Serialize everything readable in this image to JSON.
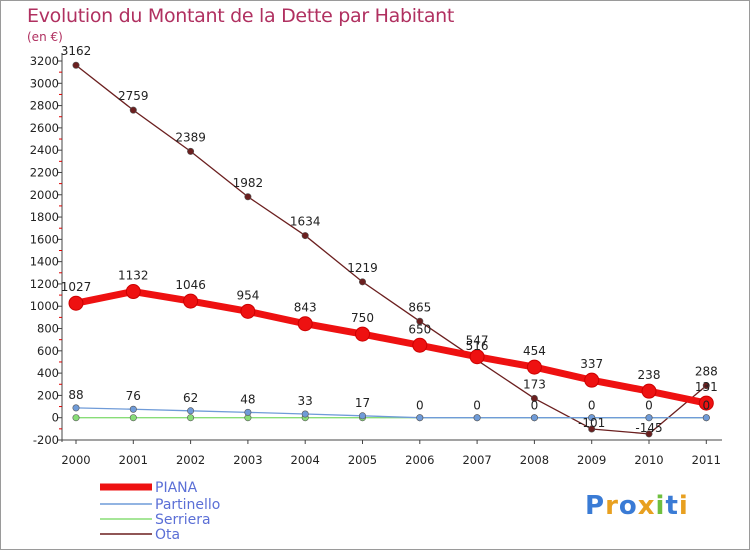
{
  "title": "Evolution du Montant de la Dette par Habitant",
  "unit": "(en €)",
  "brand": "Proxiti",
  "colors": {
    "PIANA": "#ee1111",
    "Partinello": "#6f9bd8",
    "Serriera": "#88dd77",
    "Ota": "#6b1f1f",
    "title": "#b03060"
  },
  "chart_data": {
    "type": "line",
    "x": [
      "2000",
      "2001",
      "2002",
      "2003",
      "2004",
      "2005",
      "2006",
      "2007",
      "2008",
      "2009",
      "2010",
      "2011"
    ],
    "ylim": [
      -200,
      3200
    ],
    "yticks": [
      -200,
      0,
      200,
      400,
      600,
      800,
      1000,
      1200,
      1400,
      1600,
      1800,
      2000,
      2200,
      2400,
      2600,
      2800,
      3000,
      3200
    ],
    "grid": false,
    "legend_position": "bottom-left",
    "series": [
      {
        "name": "PIANA",
        "values": [
          1027,
          1132,
          1046,
          954,
          843,
          750,
          650,
          547,
          454,
          337,
          238,
          131
        ]
      },
      {
        "name": "Partinello",
        "values": [
          88,
          76,
          62,
          48,
          33,
          17,
          0,
          0,
          0,
          0,
          0,
          0
        ]
      },
      {
        "name": "Serriera",
        "values": [
          0,
          0,
          0,
          0,
          0,
          0,
          0,
          0,
          0,
          0,
          0,
          0
        ]
      },
      {
        "name": "Ota",
        "values": [
          3162,
          2759,
          2389,
          1982,
          1634,
          1219,
          865,
          516,
          173,
          -101,
          -145,
          288
        ]
      }
    ]
  }
}
